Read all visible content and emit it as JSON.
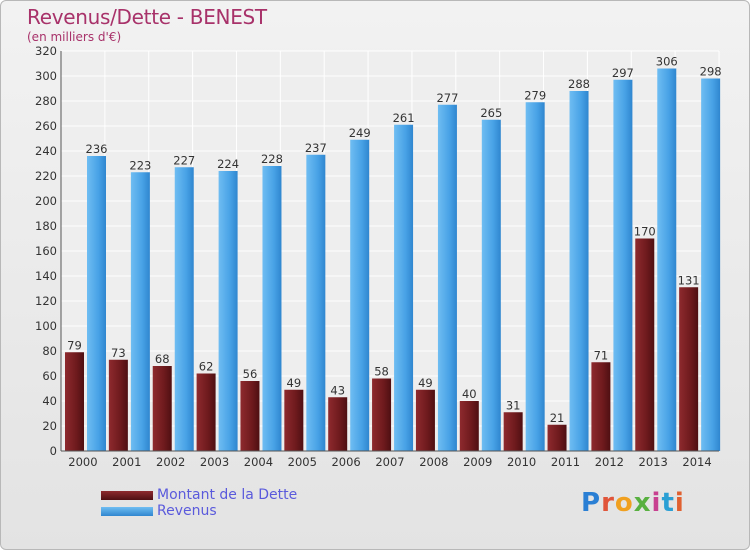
{
  "header": {
    "title": "Revenus/Dette - BENEST",
    "subtitle": "(en milliers d'€)"
  },
  "legend": {
    "items": [
      {
        "label": "Montant de la Dette",
        "color": "#7a1e22"
      },
      {
        "label": "Revenus",
        "color": "#4aa3e8"
      }
    ]
  },
  "logo": {
    "text": "Proxiti"
  },
  "chart_data": {
    "type": "bar",
    "title": "Revenus/Dette - BENEST",
    "subtitle": "(en milliers d'€)",
    "categories": [
      "2000",
      "2001",
      "2002",
      "2003",
      "2004",
      "2005",
      "2006",
      "2007",
      "2008",
      "2009",
      "2010",
      "2011",
      "2012",
      "2013",
      "2014"
    ],
    "series": [
      {
        "name": "Montant de la Dette",
        "color": "#7a1e22",
        "values": [
          79,
          73,
          68,
          62,
          56,
          49,
          43,
          58,
          49,
          40,
          31,
          21,
          71,
          170,
          131
        ]
      },
      {
        "name": "Revenus",
        "color": "#4aa3e8",
        "values": [
          236,
          223,
          227,
          224,
          228,
          237,
          249,
          261,
          277,
          265,
          279,
          288,
          297,
          306,
          298
        ]
      }
    ],
    "ylim": [
      0,
      320
    ],
    "ytick_step": 20,
    "grid": true,
    "legend_position": "bottom-left",
    "data_labels": true
  }
}
